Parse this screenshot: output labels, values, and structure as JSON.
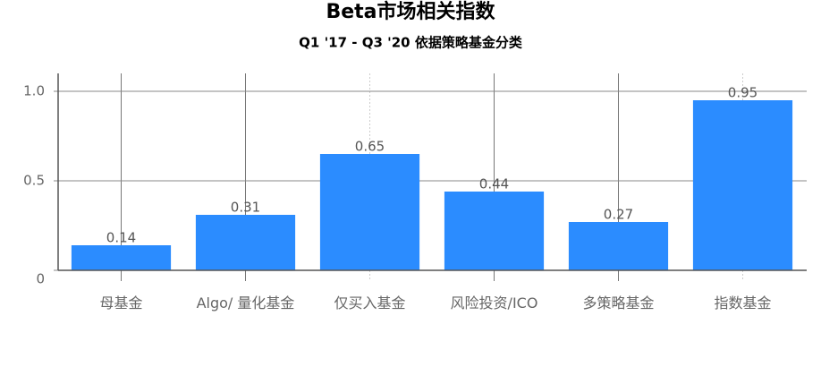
{
  "chart_data": {
    "type": "bar",
    "title": "Beta市场相关指数",
    "subtitle": "Q1 '17 - Q3 '20 依据策略基金分类",
    "categories": [
      "母基金",
      "Algo/ 量化基金",
      "仅买入基金",
      "风险投资/ICO",
      "多策略基金",
      "指数基金"
    ],
    "values": [
      0.14,
      0.31,
      0.65,
      0.44,
      0.27,
      0.95
    ],
    "color": "#2b8cff",
    "ylim": [
      0,
      1.1
    ],
    "yticks": [
      0,
      0.5,
      {
        "value": 1,
        "label": "1.0"
      }
    ],
    "grid": true
  }
}
